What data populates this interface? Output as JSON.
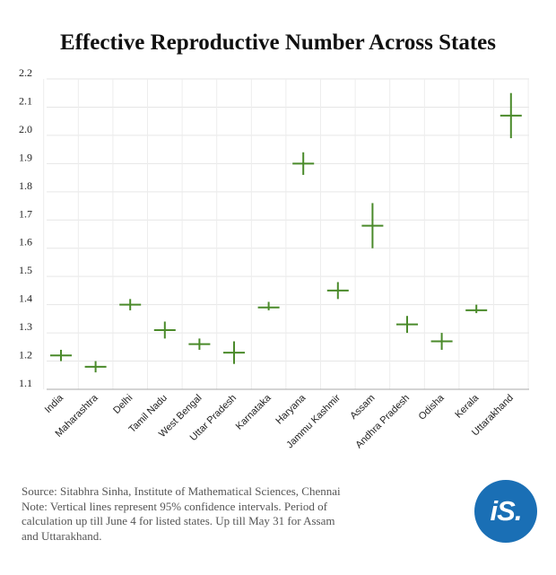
{
  "title": "Effective Reproductive Number Across States",
  "chart_data": {
    "type": "error-cross",
    "categories": [
      "India",
      "Maharashtra",
      "Delhi",
      "Tamil Nadu",
      "West Bengal",
      "Uttar Pradesh",
      "Karnataka",
      "Haryana",
      "Jammu Kashmir",
      "Assam",
      "Andhra Pradesh",
      "Odisha",
      "Kerala",
      "Uttarakhand"
    ],
    "values": [
      1.22,
      1.18,
      1.4,
      1.31,
      1.26,
      1.23,
      1.39,
      1.9,
      1.45,
      1.68,
      1.33,
      1.27,
      1.38,
      2.07
    ],
    "ci_low": [
      1.2,
      1.16,
      1.38,
      1.28,
      1.24,
      1.19,
      1.38,
      1.86,
      1.42,
      1.6,
      1.3,
      1.24,
      1.37,
      1.99
    ],
    "ci_high": [
      1.24,
      1.2,
      1.42,
      1.34,
      1.28,
      1.27,
      1.41,
      1.94,
      1.48,
      1.76,
      1.36,
      1.3,
      1.4,
      2.15
    ],
    "yticks": [
      "2.2",
      "2.1",
      "2.0",
      "1.9",
      "1.8",
      "1.7",
      "1.6",
      "1.5",
      "1.4",
      "1.3",
      "1.2",
      "1.1"
    ],
    "ylim": [
      1.1,
      2.2
    ],
    "grid": true,
    "color": "#4a8a2a"
  },
  "footer": {
    "source": "Source: Sitabhra Sinha, Institute of Mathematical Sciences, Chennai",
    "note1": "Note: Vertical lines represent 95% confidence intervals. Period of",
    "note2": "calculation up till June 4 for listed states. Up till May 31 for Assam",
    "note3": "and Uttarakhand."
  },
  "logo": {
    "text": "iS."
  }
}
